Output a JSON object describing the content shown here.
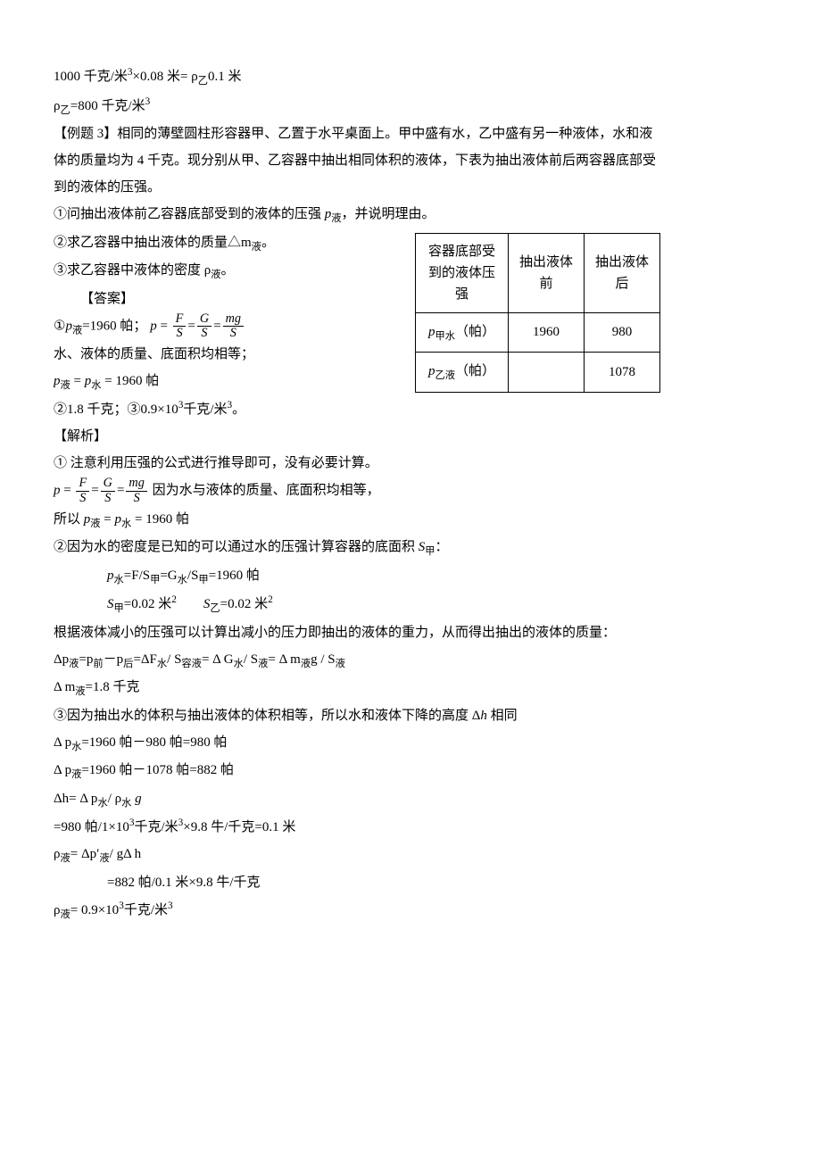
{
  "line1": "1000 千克/米",
  "line1_exp": "3",
  "line1_b": "×0.08 米= ρ",
  "line1_sub": "乙",
  "line1_c": "0.1 米",
  "line2_a": "ρ",
  "line2_sub": "乙",
  "line2_b": "=800 千克/米",
  "line2_exp": "3",
  "ex3_label": "【例题 3】",
  "ex3_text_a": "相同的薄壁圆柱形容器甲、乙置于水平桌面上。甲中盛有水，乙中盛有另一种液体，水和液体的质量均为 4 千克。现分别从甲、乙容器中抽出相同体积的液体，下表为抽出液体前后两容器底部受到的液体的压强。",
  "q1": "①问抽出液体前乙容器底部受到的液体的压强 ",
  "q1_var": "p",
  "q1_sub": "液",
  "q1_tail": "，并说明理由。",
  "q2": "②求乙容器中抽出液体的质量△m",
  "q2_sub": "液",
  "q2_tail": "。",
  "q3": "③求乙容器中液体的密度 ρ",
  "q3_sub": "液",
  "q3_tail": "。",
  "ans_label": "【答案】",
  "a1_a": "①",
  "a1_var": "p",
  "a1_sub": "液",
  "a1_b": "=1960 帕；",
  "a1_eq_lhs": "p",
  "a1_eq_eq": " = ",
  "frac1_num": "F",
  "frac1_den": "S",
  "frac2_num": "G",
  "frac2_den": "S",
  "frac3_num": "mg",
  "frac3_den": "S",
  "a1_line2": "水、液体的质量、底面积均相等；",
  "a1_line3_a": "p",
  "a1_line3_sub1": "液",
  "a1_line3_b": " = ",
  "a1_line3_c": "p",
  "a1_line3_sub2": "水",
  "a1_line3_d": " =  1960 帕",
  "a23": "②1.8 千克；③0.9×10",
  "a23_exp": "3",
  "a23_b": "千克/米",
  "a23_exp2": "3",
  "a23_c": "。",
  "parse_label": "【解析】",
  "p1": "①  注意利用压强的公式进行推导即可，没有必要计算。",
  "p1_reason": "     因为水与液体的质量、底面积均相等，",
  "p1_so_a": "所以    ",
  "p1_so_var1": "p",
  "p1_so_sub1": "液",
  "p1_so_eq": " = ",
  "p1_so_var2": "p",
  "p1_so_sub2": "水",
  "p1_so_val": " =  1960 帕",
  "p2_intro": "②因为水的密度是已知的可以通过水的压强计算容器的底面积 ",
  "p2_var": "S",
  "p2_sub": "甲",
  "p2_colon": "：",
  "p2_eq1_a": "p",
  "p2_eq1_sub1": "水",
  "p2_eq1_b": "=F/S",
  "p2_eq1_sub2": "甲",
  "p2_eq1_c": "=G",
  "p2_eq1_sub3": "水",
  "p2_eq1_d": "/S",
  "p2_eq1_sub4": "甲",
  "p2_eq1_e": "=1960 帕",
  "p2_eq2_a": "S",
  "p2_eq2_sub1": "甲",
  "p2_eq2_b": "=0.02 米",
  "p2_eq2_exp1": "2",
  "p2_eq2_sp": "        ",
  "p2_eq2_c": "S",
  "p2_eq2_sub2": "乙",
  "p2_eq2_d": "=0.02 米",
  "p2_eq2_exp2": "2",
  "p2_text": "根据液体减小的压强可以计算出减小的压力即抽出的液体的重力，从而得出抽出的液体的质量：",
  "p2_eq3_a": "Δp",
  "p2_eq3_sub1": "液",
  "p2_eq3_b": "=p",
  "p2_eq3_sub2": "前",
  "p2_eq3_c": "－p",
  "p2_eq3_sub3": "后",
  "p2_eq3_d": "=ΔF",
  "p2_eq3_sub4": "水",
  "p2_eq3_e": "/  S",
  "p2_eq3_sub5": "容液",
  "p2_eq3_f": "= Δ G",
  "p2_eq3_sub6": "水",
  "p2_eq3_g": "/  S",
  "p2_eq3_sub7": "液",
  "p2_eq3_h": "= Δ m",
  "p2_eq3_sub8": "液",
  "p2_eq3_i": "g  /  S",
  "p2_eq3_sub9": "液",
  "p2_eq4_a": "Δ m",
  "p2_eq4_sub": "液",
  "p2_eq4_b": "=1.8 千克",
  "p3_intro": "③因为抽出水的体积与抽出液体的体积相等，所以水和液体下降的高度 Δ",
  "p3_var": "h",
  "p3_tail": " 相同",
  "p3_eq1_a": "Δ  p",
  "p3_eq1_sub": "水",
  "p3_eq1_b": "=1960 帕－980 帕=980 帕",
  "p3_eq2_a": "Δ  p",
  "p3_eq2_sub": "液",
  "p3_eq2_b": "=1960 帕－1078 帕=882 帕",
  "p3_eq3_a": "Δh= Δ  p",
  "p3_eq3_sub1": "水",
  "p3_eq3_b": "/ ρ",
  "p3_eq3_sub2": "水",
  "p3_eq3_c": " g",
  "p3_eq4": "=980 帕/1×10",
  "p3_eq4_exp1": "3",
  "p3_eq4_b": "千克/米",
  "p3_eq4_exp2": "3",
  "p3_eq4_c": "×9.8 牛/千克=0.1 米",
  "p3_eq5_a": "ρ",
  "p3_eq5_sub1": "液",
  "p3_eq5_b": "= Δp′",
  "p3_eq5_sub2": "液",
  "p3_eq5_c": "/  gΔ   h",
  "p3_eq6": "=882 帕/0.1 米×9.8 牛/千克",
  "p3_eq7_a": "ρ",
  "p3_eq7_sub": "液",
  "p3_eq7_b": "= 0.9×10",
  "p3_eq7_exp": "3",
  "p3_eq7_c": "千克/米",
  "p3_eq7_exp2": "3",
  "table": {
    "h1_l1": "容器底部受",
    "h1_l2": "到的液体压",
    "h1_l3": "强",
    "h2_l1": "抽出液体",
    "h2_l2": "前",
    "h3_l1": "抽出液体",
    "h3_l2": "后",
    "r1_var": "p",
    "r1_sub": "甲水",
    "r1_unit": "（帕）",
    "r1_v1": "1960",
    "r1_v2": "980",
    "r2_var": "p",
    "r2_sub": "乙液",
    "r2_unit": "（帕）",
    "r2_v1": "",
    "r2_v2": "1078",
    "border_color": "#000000",
    "cell_padding": "6px 14px"
  }
}
